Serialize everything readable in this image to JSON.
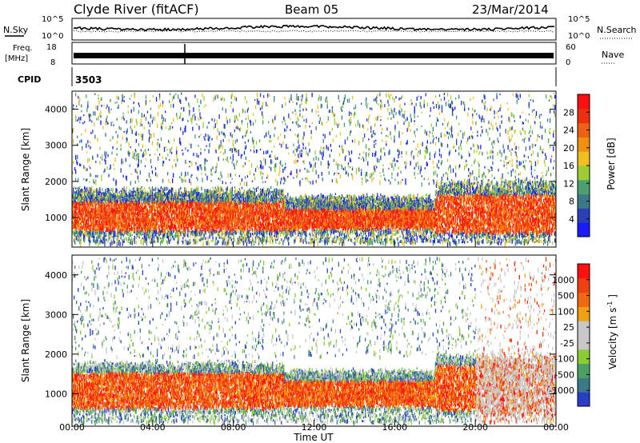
{
  "header": {
    "station": "Clyde River (fitACF)",
    "beam": "Beam 05",
    "date": "23/Mar/2014"
  },
  "strip_labels": {
    "nsky": "N.Sky",
    "nsearch": "N.Search",
    "freq_line1": "Freq.",
    "freq_line2": "[MHz]",
    "nave": "Nave",
    "cpid": "CPID",
    "cpid_value": "3503"
  },
  "strip_ticks": {
    "noise_left_top": "10^5",
    "noise_left_bottom": "10^0",
    "noise_right_top": "10^5",
    "noise_right_bottom": "10^0",
    "freq_left_top": "18",
    "freq_left_bottom": "8",
    "nave_right_top": "60",
    "nave_right_bottom": "0"
  },
  "colors": {
    "power_scale": [
      "#1a1aff",
      "#2a3fb8",
      "#3a7a88",
      "#4aa070",
      "#9dcc33",
      "#f0c020",
      "#f09010",
      "#f06010",
      "#ee3010",
      "#ff1010"
    ],
    "velocity_scale": [
      "#ff1010",
      "#f04010",
      "#f06810",
      "#f0a010",
      "#c8c8c8",
      "#c8c8c8",
      "#8ccc33",
      "#4aa060",
      "#3a7a88",
      "#2a3fc8"
    ],
    "background": "#ffffff"
  },
  "chart_data": [
    {
      "type": "heatmap",
      "panel": "power",
      "title": "",
      "xlabel": "",
      "ylabel": "Slant Range [km]",
      "x_ticks": [
        "00:00",
        "04:00",
        "08:00",
        "12:00",
        "16:00",
        "20:00",
        "00:00"
      ],
      "x_hours": [
        0,
        4,
        8,
        12,
        16,
        20,
        24
      ],
      "xlim": [
        0,
        24
      ],
      "y_ticks": [
        1000,
        2000,
        3000,
        4000
      ],
      "ylim": [
        180,
        4500
      ],
      "colorbar": {
        "label": "Power [dB]",
        "ticks": [
          4,
          8,
          12,
          16,
          20,
          24,
          28
        ],
        "range": [
          0,
          32
        ]
      }
    },
    {
      "type": "heatmap",
      "panel": "velocity",
      "title": "",
      "xlabel": "Time UT",
      "ylabel": "Slant Range [km]",
      "x_ticks": [
        "00:00",
        "04:00",
        "08:00",
        "12:00",
        "16:00",
        "20:00",
        "00:00"
      ],
      "x_hours": [
        0,
        4,
        8,
        12,
        16,
        20,
        24
      ],
      "xlim": [
        0,
        24
      ],
      "y_ticks": [
        1000,
        2000,
        3000,
        4000
      ],
      "ylim": [
        180,
        4500
      ],
      "colorbar": {
        "label": "Velocity [m s^-1]",
        "ticks": [
          -1000,
          -500,
          -100,
          -25,
          25,
          100,
          500,
          1000
        ]
      }
    }
  ]
}
